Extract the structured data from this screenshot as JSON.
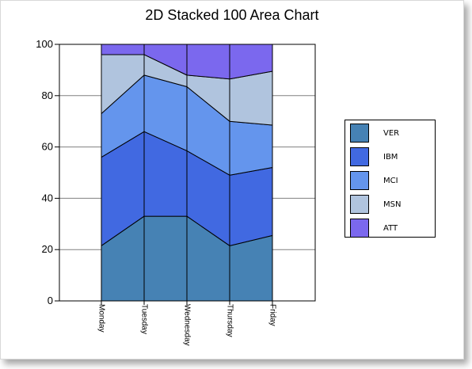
{
  "chart_data": {
    "type": "area",
    "stacking": "percent",
    "title": "2D Stacked 100 Area Chart",
    "xlabel": "",
    "ylabel": "",
    "ylim": [
      0,
      100
    ],
    "yticks": [
      0,
      20,
      40,
      60,
      80,
      100
    ],
    "categories": [
      "Monday",
      "Tuesday",
      "Wednesday",
      "Thursday",
      "Friday"
    ],
    "legend_position": "right",
    "grid": "horizontal",
    "series": [
      {
        "name": "VER",
        "color": "#4682B4",
        "values": [
          21.5,
          33.0,
          33.0,
          21.5,
          25.5
        ]
      },
      {
        "name": "IBM",
        "color": "#4169E1",
        "values": [
          34.5,
          33.0,
          25.5,
          27.5,
          26.5
        ]
      },
      {
        "name": "MCI",
        "color": "#6495ED",
        "values": [
          17.0,
          22.0,
          25.0,
          21.0,
          16.5
        ]
      },
      {
        "name": "MSN",
        "color": "#B0C4DE",
        "values": [
          23.0,
          8.0,
          4.5,
          16.5,
          21.0
        ]
      },
      {
        "name": "ATT",
        "color": "#7B68EE",
        "values": [
          4.0,
          4.0,
          12.0,
          13.5,
          10.5
        ]
      }
    ]
  }
}
